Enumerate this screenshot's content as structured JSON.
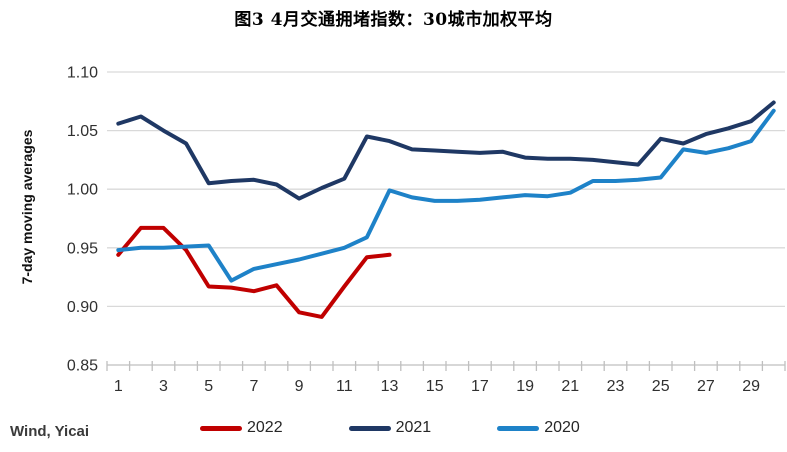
{
  "title": "图3 4月交通拥堵指数：30城市加权平均",
  "source": "Wind, Yicai",
  "chart_data": {
    "type": "line",
    "title": "图3 4月交通拥堵指数：30城市加权平均",
    "xlabel": "",
    "ylabel": "7-day moving averages",
    "ylim": [
      0.85,
      1.1
    ],
    "yticks": [
      0.85,
      0.9,
      0.95,
      1.0,
      1.05,
      1.1
    ],
    "xticks": [
      1,
      3,
      5,
      7,
      9,
      11,
      13,
      15,
      17,
      19,
      21,
      23,
      25,
      27,
      29
    ],
    "x_range": [
      1,
      30
    ],
    "grid": true,
    "legend_position": "bottom",
    "axis_color": "#BFBFBF",
    "grid_color": "#D9D9D9",
    "tick_label_color": "#303030",
    "series": [
      {
        "name": "2022",
        "color": "#C00000",
        "x_start": 1,
        "values": [
          0.944,
          0.967,
          0.967,
          0.948,
          0.917,
          0.916,
          0.913,
          0.918,
          0.895,
          0.891,
          0.917,
          0.942,
          0.944
        ]
      },
      {
        "name": "2021",
        "color": "#1F3864",
        "x_start": 1,
        "values": [
          1.056,
          1.062,
          1.05,
          1.039,
          1.005,
          1.007,
          1.008,
          1.004,
          0.992,
          1.001,
          1.009,
          1.045,
          1.041,
          1.034,
          1.033,
          1.032,
          1.031,
          1.032,
          1.027,
          1.026,
          1.026,
          1.025,
          1.023,
          1.021,
          1.043,
          1.039,
          1.047,
          1.052,
          1.058,
          1.074
        ]
      },
      {
        "name": "2020",
        "color": "#1E82C8",
        "x_start": 1,
        "values": [
          0.948,
          0.95,
          0.95,
          0.951,
          0.952,
          0.922,
          0.932,
          0.936,
          0.94,
          0.945,
          0.95,
          0.959,
          0.999,
          0.993,
          0.99,
          0.99,
          0.991,
          0.993,
          0.995,
          0.994,
          0.997,
          1.007,
          1.007,
          1.008,
          1.01,
          1.034,
          1.031,
          1.035,
          1.041,
          1.067
        ]
      }
    ]
  }
}
